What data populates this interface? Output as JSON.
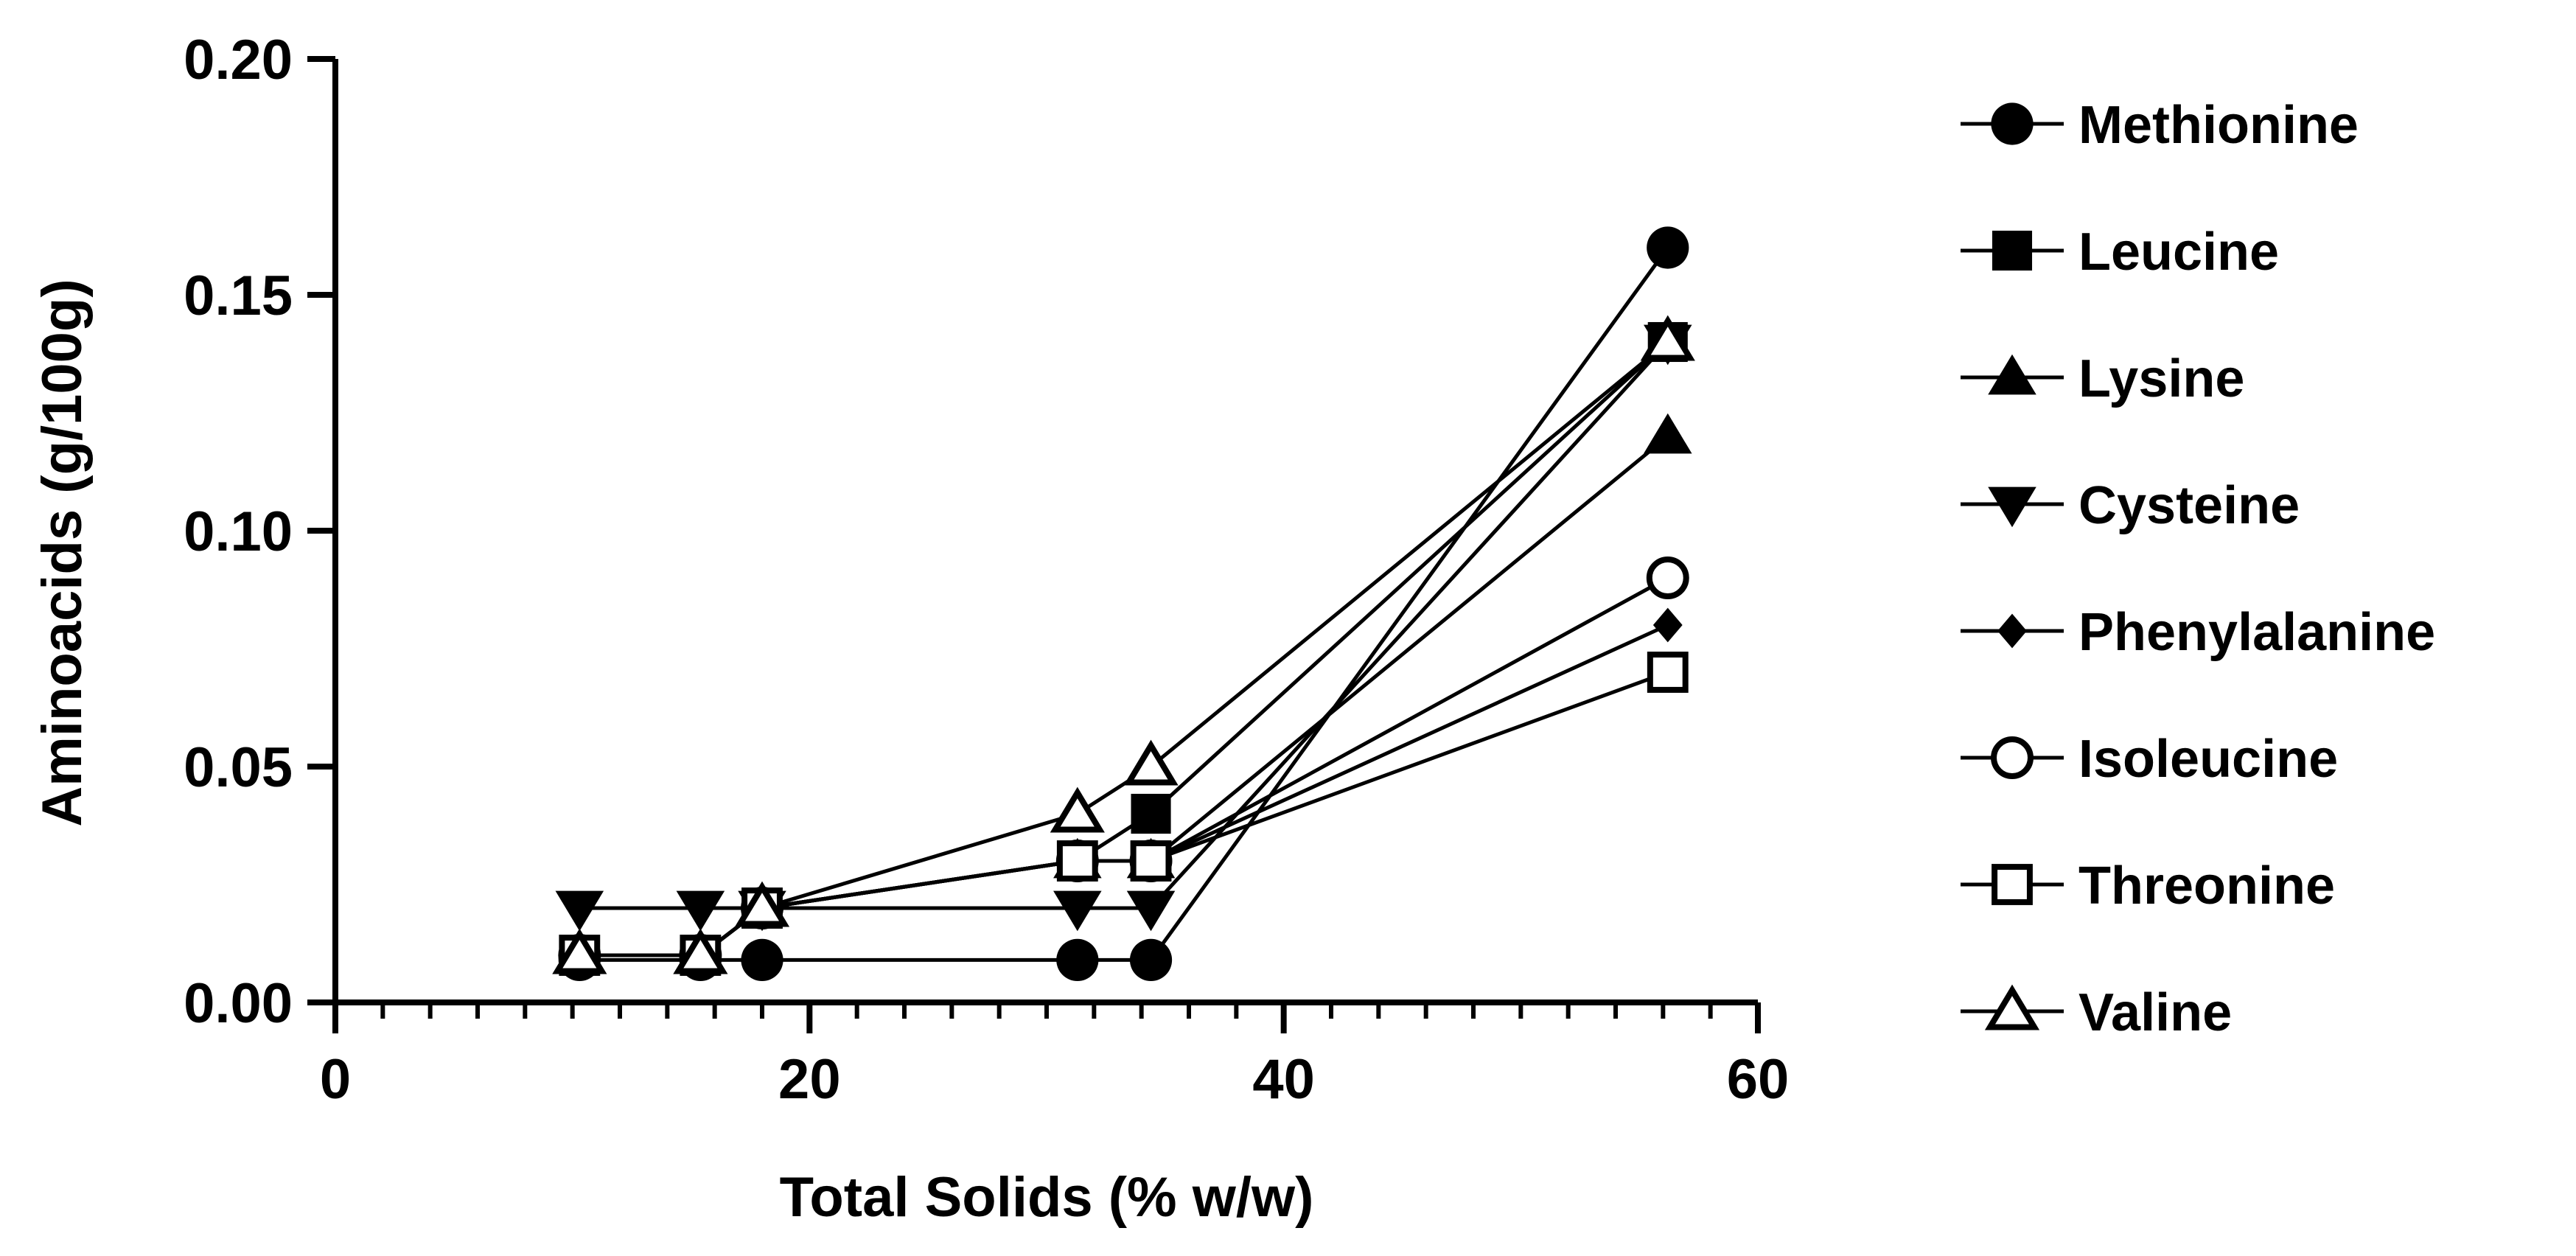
{
  "chart_data": {
    "type": "line",
    "title": "",
    "xlabel": "Total Solids (% w/w)",
    "ylabel": "Aminoacids (g/100g)",
    "xlim": [
      0,
      60
    ],
    "ylim": [
      0,
      0.2
    ],
    "xticks": [
      0,
      20,
      40,
      60
    ],
    "xtick_labels": [
      "0",
      "20",
      "40",
      "60"
    ],
    "yticks": [
      0,
      0.05,
      0.1,
      0.15,
      0.2
    ],
    "ytick_labels": [
      "0.00",
      "0.05",
      "0.10",
      "0.15",
      "0.20"
    ],
    "legend_position": "right",
    "grid": false,
    "x": [
      10.3,
      15.4,
      18.0,
      31.3,
      34.4,
      56.2
    ],
    "series": [
      {
        "name": "Methionine",
        "marker": "circle-filled",
        "values": [
          0.009,
          0.009,
          0.009,
          0.009,
          0.009,
          0.16
        ]
      },
      {
        "name": "Leucine",
        "marker": "square-filled",
        "values": [
          0.01,
          0.01,
          0.02,
          0.03,
          0.04,
          0.14
        ]
      },
      {
        "name": "Lysine",
        "marker": "triangle-up-filled",
        "values": [
          0.01,
          0.01,
          0.02,
          0.03,
          0.03,
          0.12
        ]
      },
      {
        "name": "Cysteine",
        "marker": "triangle-down-filled",
        "values": [
          0.02,
          0.02,
          0.02,
          0.02,
          0.02,
          0.14
        ]
      },
      {
        "name": "Phenylalanine",
        "marker": "diamond-filled",
        "values": [
          0.01,
          0.01,
          0.02,
          0.03,
          0.03,
          0.08
        ]
      },
      {
        "name": "Isoleucine",
        "marker": "circle-open",
        "values": [
          0.01,
          0.01,
          0.02,
          0.03,
          0.03,
          0.09
        ]
      },
      {
        "name": "Threonine",
        "marker": "square-open",
        "values": [
          0.01,
          0.01,
          0.02,
          0.03,
          0.03,
          0.07
        ]
      },
      {
        "name": "Valine",
        "marker": "triangle-up-open",
        "values": [
          0.01,
          0.01,
          0.02,
          0.04,
          0.05,
          0.14
        ]
      }
    ]
  }
}
